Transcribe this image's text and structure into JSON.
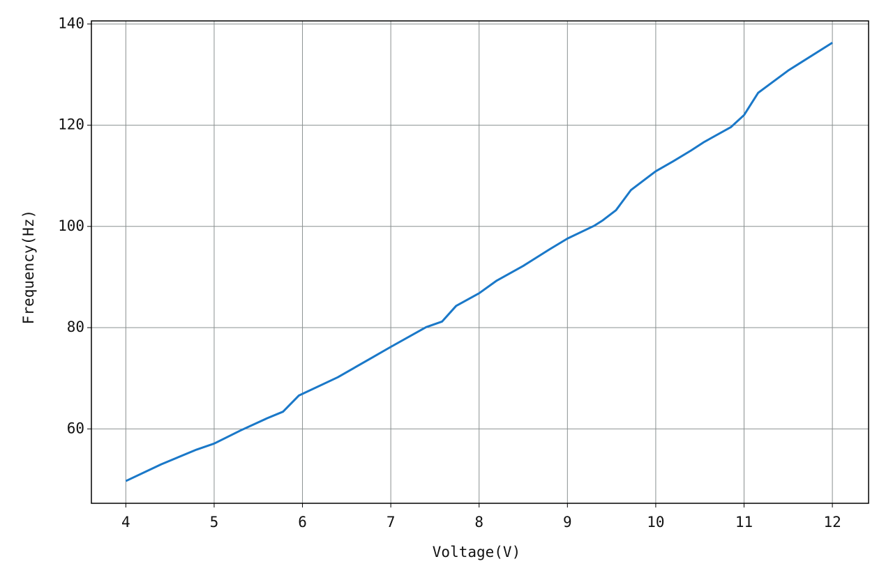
{
  "chart_data": {
    "type": "line",
    "xlabel": "Voltage(V)",
    "ylabel": "Frequency(Hz)",
    "x": [
      4.0,
      4.4,
      4.8,
      5.0,
      5.3,
      5.6,
      5.78,
      5.96,
      6.4,
      6.8,
      7.0,
      7.4,
      7.58,
      7.74,
      8.0,
      8.2,
      8.5,
      8.8,
      9.0,
      9.3,
      9.4,
      9.55,
      9.72,
      10.0,
      10.2,
      10.4,
      10.55,
      10.85,
      11.0,
      11.16,
      11.5,
      12.0
    ],
    "series": [
      {
        "color": "#1a78c8",
        "values": [
          49.7,
          53.0,
          55.9,
          57.1,
          59.7,
          62.1,
          63.4,
          66.6,
          70.2,
          74.2,
          76.2,
          80.1,
          81.2,
          84.3,
          86.8,
          89.3,
          92.2,
          95.5,
          97.6,
          100.1,
          101.2,
          103.2,
          107.2,
          110.9,
          112.9,
          115.0,
          116.7,
          119.6,
          122.0,
          126.4,
          130.8,
          136.3
        ]
      }
    ],
    "xlim": [
      3.61,
      12.41
    ],
    "ylim": [
      45.3,
      140.6
    ],
    "xticks": [
      4,
      5,
      6,
      7,
      8,
      9,
      10,
      11,
      12
    ],
    "yticks": [
      60,
      80,
      100,
      120,
      140
    ],
    "grid": true
  }
}
